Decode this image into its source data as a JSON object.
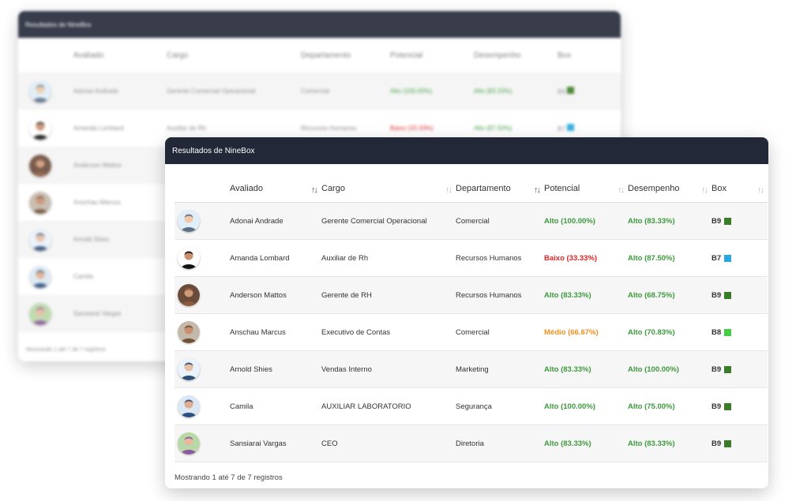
{
  "card_title": "Resultados de NineBox",
  "columns": [
    "Avaliado",
    "Cargo",
    "Departamento",
    "Potencial",
    "Desempenho",
    "Box"
  ],
  "sort_icons": {
    "neutral": "↑↓",
    "active": "↑↓"
  },
  "colors": {
    "header_bg": "#232838",
    "alto": "#3c9a3c",
    "medio": "#f0901e",
    "baixo": "#e02424",
    "box_dark_green": "#3a7d27",
    "box_light_green": "#44cc44",
    "box_blue": "#29a8e0"
  },
  "rows": [
    {
      "avatar": "avatar-1",
      "avaliado": "Adonai Andrade",
      "cargo": "Gerente Comercial Operacional",
      "departamento": "Comercial",
      "potencial": "Alto (100.00%)",
      "potencial_level": "alto",
      "desempenho": "Alto (83.33%)",
      "desempenho_level": "alto",
      "box": "B9",
      "box_color": "#3a7d27"
    },
    {
      "avatar": "avatar-2",
      "avaliado": "Amanda Lombard",
      "cargo": "Auxiliar de Rh",
      "departamento": "Recursos Humanos",
      "potencial": "Baixo (33.33%)",
      "potencial_level": "baixo",
      "desempenho": "Alto (87.50%)",
      "desempenho_level": "alto",
      "box": "B7",
      "box_color": "#29a8e0"
    },
    {
      "avatar": "avatar-3",
      "avaliado": "Anderson Mattos",
      "cargo": "Gerente de RH",
      "departamento": "Recursos Humanos",
      "potencial": "Alto (83.33%)",
      "potencial_level": "alto",
      "desempenho": "Alto (68.75%)",
      "desempenho_level": "alto",
      "box": "B9",
      "box_color": "#3a7d27"
    },
    {
      "avatar": "avatar-4",
      "avaliado": "Anschau Marcus",
      "cargo": "Executivo de Contas",
      "departamento": "Comercial",
      "potencial": "Médio (66.67%)",
      "potencial_level": "medio",
      "desempenho": "Alto (70.83%)",
      "desempenho_level": "alto",
      "box": "B8",
      "box_color": "#44cc44"
    },
    {
      "avatar": "avatar-5",
      "avaliado": "Arnold Shies",
      "cargo": "Vendas Interno",
      "departamento": "Marketing",
      "potencial": "Alto (83.33%)",
      "potencial_level": "alto",
      "desempenho": "Alto (100.00%)",
      "desempenho_level": "alto",
      "box": "B9",
      "box_color": "#3a7d27"
    },
    {
      "avatar": "avatar-6",
      "avaliado": "Camila",
      "cargo": "AUXILIAR LABORATORIO",
      "departamento": "Segurança",
      "potencial": "Alto (100.00%)",
      "potencial_level": "alto",
      "desempenho": "Alto (75.00%)",
      "desempenho_level": "alto",
      "box": "B9",
      "box_color": "#3a7d27"
    },
    {
      "avatar": "avatar-7",
      "avaliado": "Sansiarai Vargas",
      "cargo": "CEO",
      "departamento": "Diretoria",
      "potencial": "Alto (83.33%)",
      "potencial_level": "alto",
      "desempenho": "Alto (83.33%)",
      "desempenho_level": "alto",
      "box": "B9",
      "box_color": "#3a7d27"
    }
  ],
  "footer": "Mostrando 1 até 7 de 7 registros"
}
